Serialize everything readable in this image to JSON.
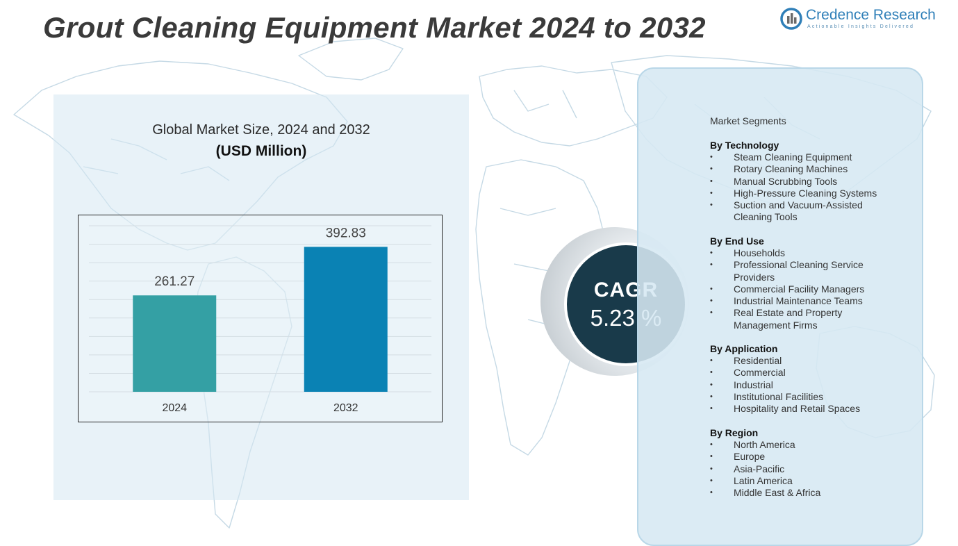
{
  "header": {
    "title": "Grout Cleaning Equipment Market 2024 to 2032"
  },
  "logo": {
    "name": "Credence Research",
    "tagline": "Actionable Insights Delivered"
  },
  "chart_data": {
    "type": "bar",
    "title": "Global Market Size, 2024 and 2032",
    "subtitle": "(USD Million)",
    "categories": [
      "2024",
      "2032"
    ],
    "values": [
      261.27,
      392.83
    ],
    "data_labels": [
      "261.27",
      "392.83"
    ],
    "colors": [
      "#34a0a4",
      "#0a82b4"
    ],
    "ylim": [
      0,
      450
    ],
    "grid": true,
    "legend": "none"
  },
  "cagr": {
    "label": "CAGR",
    "value": "5.23 %"
  },
  "segments": {
    "heading": "Market Segments",
    "groups": [
      {
        "title": "By Technology",
        "items": [
          "Steam Cleaning Equipment",
          "Rotary Cleaning Machines",
          "Manual Scrubbing Tools",
          "High-Pressure Cleaning Systems",
          "Suction and Vacuum-Assisted Cleaning Tools"
        ]
      },
      {
        "title": "By End Use",
        "items": [
          "Households",
          "Professional Cleaning Service Providers",
          "Commercial Facility Managers",
          "Industrial Maintenance Teams",
          "Real Estate and Property Management Firms"
        ]
      },
      {
        "title": "By Application",
        "items": [
          "Residential",
          "Commercial",
          "Industrial",
          "Institutional Facilities",
          "Hospitality and Retail Spaces"
        ]
      },
      {
        "title": "By Region",
        "items": [
          "North America",
          "Europe",
          "Asia-Pacific",
          "Latin America",
          "Middle East & Africa"
        ]
      }
    ]
  }
}
